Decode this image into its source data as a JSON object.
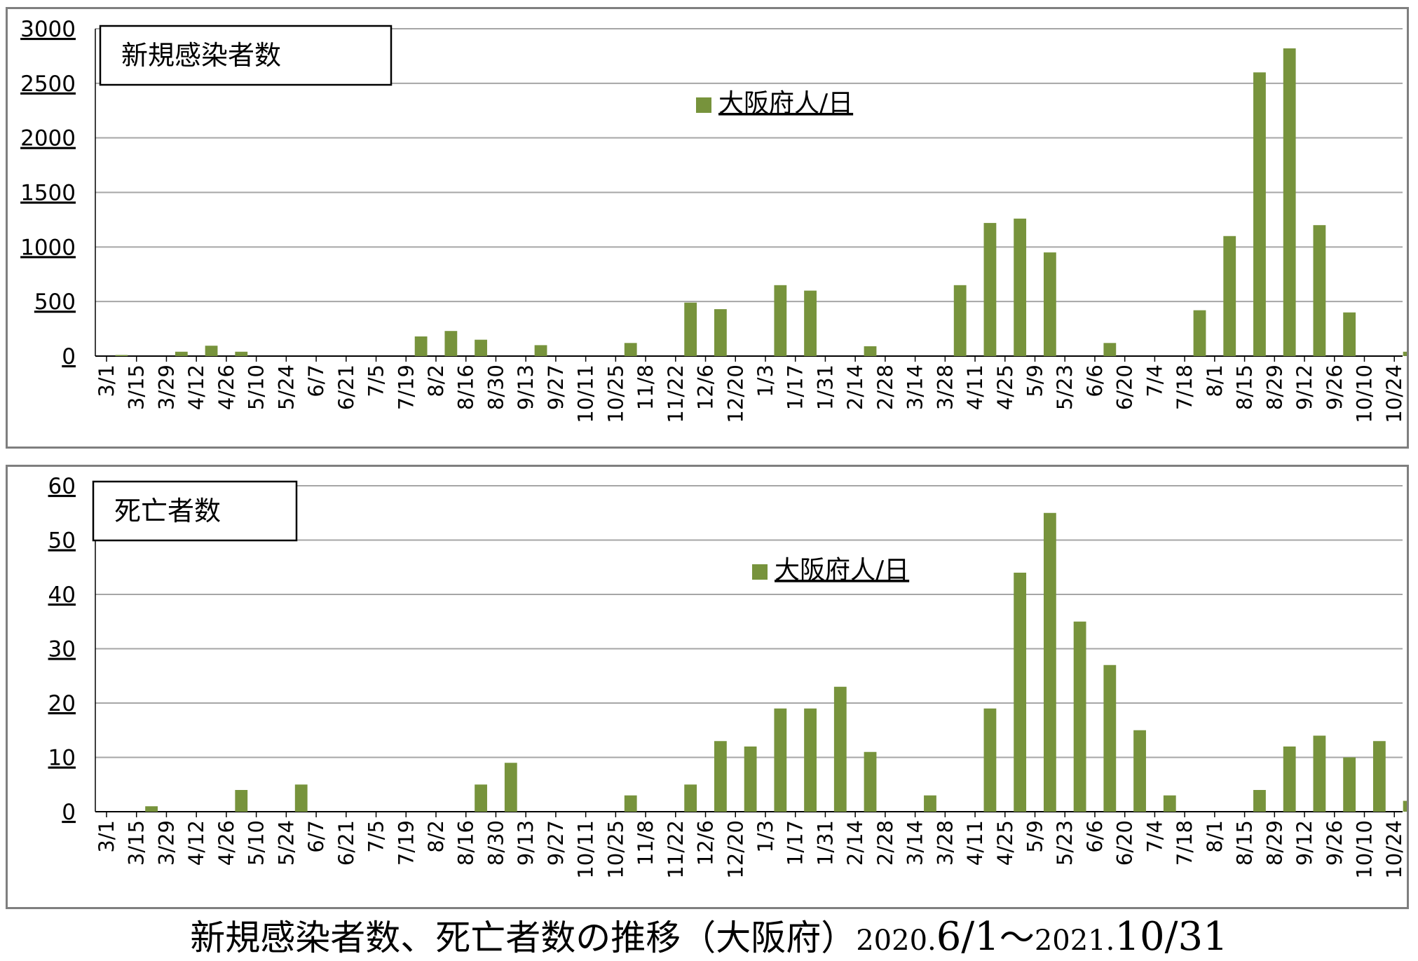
{
  "colors": {
    "bar": "#77933c",
    "grid": "#a6a6a6",
    "axis": "#000000"
  },
  "caption": {
    "part1": "新規感染者数、死亡者数の推移（大阪府）",
    "year1": "2020.",
    "range1": "6/1",
    "tilde": "～",
    "year2": "2021.",
    "range2": "10/31"
  },
  "chart_data": [
    {
      "type": "bar",
      "title": "新規感染者数",
      "legend": "大阪府人/日",
      "legend_position": "top-center",
      "ylim": [
        0,
        3000
      ],
      "yticks": [
        "0",
        "500",
        "1000",
        "1500",
        "2000",
        "2500",
        "3000"
      ],
      "xticks": [
        "3/1",
        "3/15",
        "3/29",
        "4/12",
        "4/26",
        "5/10",
        "5/24",
        "6/7",
        "6/21",
        "7/5",
        "7/19",
        "8/2",
        "8/16",
        "8/30",
        "9/13",
        "9/27",
        "10/11",
        "10/25",
        "11/8",
        "11/22",
        "12/6",
        "12/20",
        "1/3",
        "1/17",
        "1/31",
        "2/14",
        "2/28",
        "3/14",
        "3/28",
        "4/11",
        "4/25",
        "5/9",
        "5/23",
        "6/6",
        "6/20",
        "7/4",
        "7/18",
        "8/1",
        "8/15",
        "8/29",
        "9/12",
        "9/26",
        "10/10",
        "10/24"
      ],
      "grid": true,
      "weekly_peaks": [
        {
          "week_of": "3/1",
          "value": 10
        },
        {
          "week_of": "3/29",
          "value": 40
        },
        {
          "week_of": "4/12",
          "value": 95
        },
        {
          "week_of": "4/26",
          "value": 40
        },
        {
          "week_of": "7/19",
          "value": 180
        },
        {
          "week_of": "8/2",
          "value": 230
        },
        {
          "week_of": "8/16",
          "value": 150
        },
        {
          "week_of": "9/13",
          "value": 100
        },
        {
          "week_of": "10/25",
          "value": 120
        },
        {
          "week_of": "11/22",
          "value": 490
        },
        {
          "week_of": "12/6",
          "value": 430
        },
        {
          "week_of": "1/3",
          "value": 650
        },
        {
          "week_of": "1/17",
          "value": 600
        },
        {
          "week_of": "2/14",
          "value": 90
        },
        {
          "week_of": "3/28",
          "value": 650
        },
        {
          "week_of": "4/11",
          "value": 1220
        },
        {
          "week_of": "4/25",
          "value": 1260
        },
        {
          "week_of": "5/9",
          "value": 950
        },
        {
          "week_of": "6/6",
          "value": 120
        },
        {
          "week_of": "7/18",
          "value": 420
        },
        {
          "week_of": "8/1",
          "value": 1100
        },
        {
          "week_of": "8/15",
          "value": 2600
        },
        {
          "week_of": "8/29",
          "value": 2820
        },
        {
          "week_of": "9/12",
          "value": 1200
        },
        {
          "week_of": "9/26",
          "value": 400
        },
        {
          "week_of": "10/24",
          "value": 40
        }
      ]
    },
    {
      "type": "bar",
      "title": "死亡者数",
      "legend": "大阪府人/日",
      "legend_position": "top-center",
      "ylim": [
        0,
        60
      ],
      "yticks": [
        "0",
        "10",
        "20",
        "30",
        "40",
        "50",
        "60"
      ],
      "xticks": [
        "3/1",
        "3/15",
        "3/29",
        "4/12",
        "4/26",
        "5/10",
        "5/24",
        "6/7",
        "6/21",
        "7/5",
        "7/19",
        "8/2",
        "8/16",
        "8/30",
        "9/13",
        "9/27",
        "10/11",
        "10/25",
        "11/8",
        "11/22",
        "12/6",
        "12/20",
        "1/3",
        "1/17",
        "1/31",
        "2/14",
        "2/28",
        "3/14",
        "3/28",
        "4/11",
        "4/25",
        "5/9",
        "5/23",
        "6/6",
        "6/20",
        "7/4",
        "7/18",
        "8/1",
        "8/15",
        "8/29",
        "9/12",
        "9/26",
        "10/10",
        "10/24"
      ],
      "grid": true,
      "weekly_peaks": [
        {
          "week_of": "3/15",
          "value": 1
        },
        {
          "week_of": "4/26",
          "value": 4
        },
        {
          "week_of": "5/24",
          "value": 5
        },
        {
          "week_of": "8/16",
          "value": 5
        },
        {
          "week_of": "8/30",
          "value": 9
        },
        {
          "week_of": "10/25",
          "value": 3
        },
        {
          "week_of": "11/22",
          "value": 5
        },
        {
          "week_of": "12/6",
          "value": 13
        },
        {
          "week_of": "12/20",
          "value": 12
        },
        {
          "week_of": "1/3",
          "value": 19
        },
        {
          "week_of": "1/17",
          "value": 19
        },
        {
          "week_of": "1/31",
          "value": 23
        },
        {
          "week_of": "2/14",
          "value": 11
        },
        {
          "week_of": "3/14",
          "value": 3
        },
        {
          "week_of": "4/11",
          "value": 19
        },
        {
          "week_of": "4/25",
          "value": 44
        },
        {
          "week_of": "5/9",
          "value": 55
        },
        {
          "week_of": "5/23",
          "value": 35
        },
        {
          "week_of": "6/6",
          "value": 27
        },
        {
          "week_of": "6/20",
          "value": 15
        },
        {
          "week_of": "7/4",
          "value": 3
        },
        {
          "week_of": "8/15",
          "value": 4
        },
        {
          "week_of": "8/29",
          "value": 12
        },
        {
          "week_of": "9/12",
          "value": 14
        },
        {
          "week_of": "9/26",
          "value": 10
        },
        {
          "week_of": "10/10",
          "value": 13
        },
        {
          "week_of": "10/24",
          "value": 2
        }
      ]
    }
  ]
}
